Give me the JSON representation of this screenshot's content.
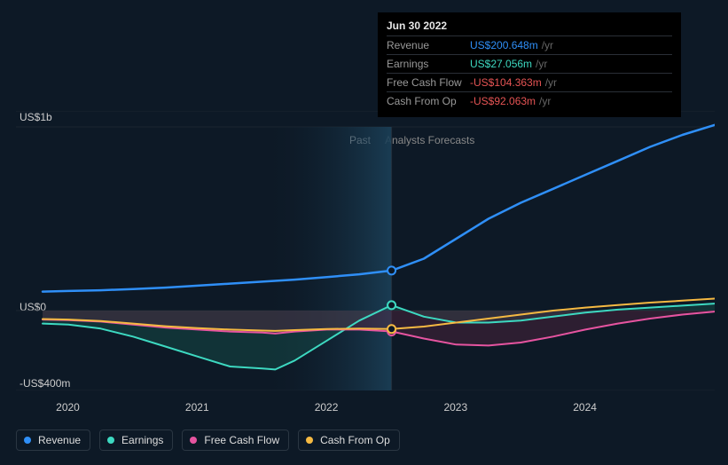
{
  "chart": {
    "type": "line",
    "background_color": "#0d1926",
    "grid_color": "#1a2530",
    "past_label": "Past",
    "forecast_label": "Analysts Forecasts",
    "x_axis": {
      "min": 2019.8,
      "max": 2025.0,
      "ticks": [
        2020,
        2021,
        2022,
        2023,
        2024
      ],
      "labels": [
        "2020",
        "2021",
        "2022",
        "2023",
        "2024"
      ],
      "fontsize": 12
    },
    "y_axis": {
      "min": -400,
      "max": 1000,
      "ticks": [
        1000,
        0,
        -400
      ],
      "labels": [
        "US$1b",
        "US$0",
        "-US$400m"
      ],
      "fontsize": 12
    },
    "current_x": 2022.5,
    "past_band_start": 2021.5,
    "forecast_start": 2022.5,
    "series": [
      {
        "id": "revenue",
        "name": "Revenue",
        "color": "#2f8ff7",
        "fill_opacity": 0,
        "stroke_width": 2.5,
        "marker_value": 200.648,
        "points": [
          [
            2019.8,
            95
          ],
          [
            2020.0,
            98
          ],
          [
            2020.25,
            102
          ],
          [
            2020.5,
            108
          ],
          [
            2020.75,
            115
          ],
          [
            2021.0,
            125
          ],
          [
            2021.25,
            135
          ],
          [
            2021.5,
            145
          ],
          [
            2021.75,
            155
          ],
          [
            2022.0,
            168
          ],
          [
            2022.25,
            182
          ],
          [
            2022.5,
            200.648
          ],
          [
            2022.75,
            260
          ],
          [
            2023.0,
            360
          ],
          [
            2023.25,
            460
          ],
          [
            2023.5,
            540
          ],
          [
            2023.75,
            610
          ],
          [
            2024.0,
            680
          ],
          [
            2024.25,
            750
          ],
          [
            2024.5,
            820
          ],
          [
            2024.75,
            880
          ],
          [
            2025.0,
            930
          ]
        ]
      },
      {
        "id": "earnings",
        "name": "Earnings",
        "color": "#3dd9c1",
        "fill_color": "#1a6458",
        "fill_opacity": 0.35,
        "stroke_width": 2,
        "marker_value": 27.056,
        "points": [
          [
            2019.8,
            -65
          ],
          [
            2020.0,
            -70
          ],
          [
            2020.25,
            -90
          ],
          [
            2020.5,
            -130
          ],
          [
            2020.75,
            -180
          ],
          [
            2021.0,
            -230
          ],
          [
            2021.25,
            -280
          ],
          [
            2021.5,
            -290
          ],
          [
            2021.6,
            -295
          ],
          [
            2021.75,
            -250
          ],
          [
            2022.0,
            -150
          ],
          [
            2022.25,
            -50
          ],
          [
            2022.5,
            27.056
          ],
          [
            2022.75,
            -30
          ],
          [
            2023.0,
            -60
          ],
          [
            2023.25,
            -60
          ],
          [
            2023.5,
            -50
          ],
          [
            2023.75,
            -30
          ],
          [
            2024.0,
            -10
          ],
          [
            2024.25,
            5
          ],
          [
            2024.5,
            15
          ],
          [
            2024.75,
            25
          ],
          [
            2025.0,
            35
          ]
        ]
      },
      {
        "id": "fcf",
        "name": "Free Cash Flow",
        "color": "#e654a0",
        "fill_color": "#6b2848",
        "fill_opacity": 0.35,
        "stroke_width": 2,
        "marker_value": -104.363,
        "points": [
          [
            2019.8,
            -45
          ],
          [
            2020.0,
            -48
          ],
          [
            2020.25,
            -55
          ],
          [
            2020.5,
            -70
          ],
          [
            2020.75,
            -85
          ],
          [
            2021.0,
            -95
          ],
          [
            2021.25,
            -105
          ],
          [
            2021.5,
            -110
          ],
          [
            2021.6,
            -115
          ],
          [
            2021.75,
            -105
          ],
          [
            2022.0,
            -95
          ],
          [
            2022.25,
            -95
          ],
          [
            2022.5,
            -104.363
          ],
          [
            2022.75,
            -140
          ],
          [
            2023.0,
            -170
          ],
          [
            2023.25,
            -175
          ],
          [
            2023.5,
            -160
          ],
          [
            2023.75,
            -130
          ],
          [
            2024.0,
            -95
          ],
          [
            2024.25,
            -65
          ],
          [
            2024.5,
            -40
          ],
          [
            2024.75,
            -20
          ],
          [
            2025.0,
            -5
          ]
        ]
      },
      {
        "id": "cfo",
        "name": "Cash From Op",
        "color": "#f5b942",
        "fill_opacity": 0,
        "stroke_width": 2,
        "marker_value": -92.063,
        "points": [
          [
            2019.8,
            -42
          ],
          [
            2020.0,
            -45
          ],
          [
            2020.25,
            -52
          ],
          [
            2020.5,
            -65
          ],
          [
            2020.75,
            -78
          ],
          [
            2021.0,
            -88
          ],
          [
            2021.25,
            -95
          ],
          [
            2021.5,
            -100
          ],
          [
            2021.6,
            -102
          ],
          [
            2021.75,
            -98
          ],
          [
            2022.0,
            -92
          ],
          [
            2022.25,
            -90
          ],
          [
            2022.5,
            -92.063
          ],
          [
            2022.75,
            -80
          ],
          [
            2023.0,
            -60
          ],
          [
            2023.25,
            -40
          ],
          [
            2023.5,
            -20
          ],
          [
            2023.75,
            0
          ],
          [
            2024.0,
            15
          ],
          [
            2024.25,
            28
          ],
          [
            2024.5,
            40
          ],
          [
            2024.75,
            50
          ],
          [
            2025.0,
            60
          ]
        ]
      }
    ]
  },
  "tooltip": {
    "date": "Jun 30 2022",
    "unit": "/yr",
    "rows": [
      {
        "label": "Revenue",
        "value": "US$200.648m",
        "color": "#2f8ff7"
      },
      {
        "label": "Earnings",
        "value": "US$27.056m",
        "color": "#3dd9c1"
      },
      {
        "label": "Free Cash Flow",
        "value": "-US$104.363m",
        "color": "#e65454"
      },
      {
        "label": "Cash From Op",
        "value": "-US$92.063m",
        "color": "#e65454"
      }
    ]
  },
  "legend": {
    "items": [
      {
        "id": "revenue",
        "label": "Revenue",
        "color": "#2f8ff7"
      },
      {
        "id": "earnings",
        "label": "Earnings",
        "color": "#3dd9c1"
      },
      {
        "id": "fcf",
        "label": "Free Cash Flow",
        "color": "#e654a0"
      },
      {
        "id": "cfo",
        "label": "Cash From Op",
        "color": "#f5b942"
      }
    ]
  }
}
